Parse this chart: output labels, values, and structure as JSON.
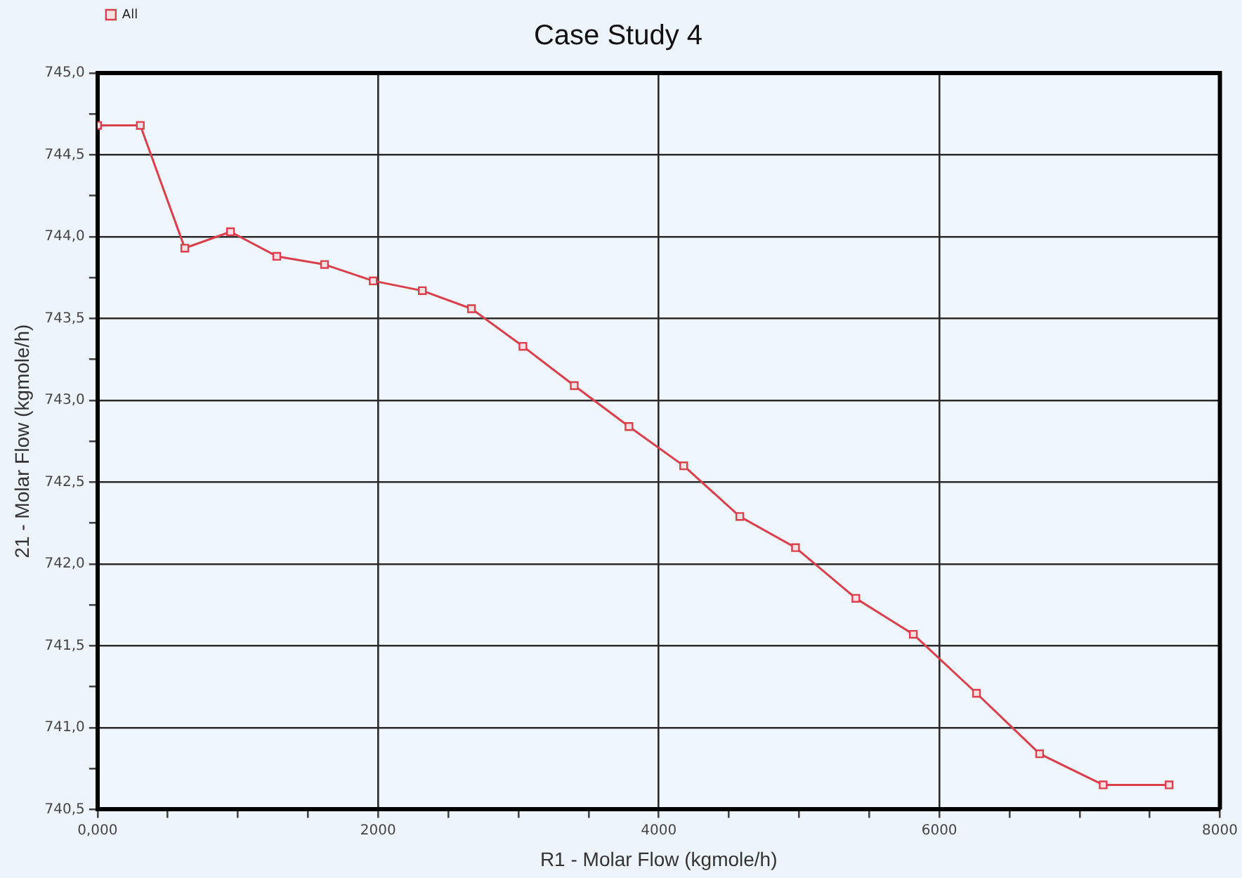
{
  "chart_data": {
    "type": "line",
    "title": "Case Study 4",
    "xlabel": "R1 - Molar Flow (kgmole/h)",
    "ylabel": "21 - Molar Flow (kgmole/h)",
    "x": [
      0,
      305,
      622,
      948,
      1278,
      1618,
      1965,
      2315,
      2665,
      3032,
      3398,
      3788,
      4178,
      4578,
      4975,
      5405,
      5815,
      6265,
      6715,
      7168,
      7638
    ],
    "series": [
      {
        "name": "All",
        "color": "#d9404c",
        "values": [
          744.68,
          744.68,
          743.93,
          744.03,
          743.88,
          743.83,
          743.73,
          743.67,
          743.56,
          743.33,
          743.09,
          742.84,
          742.6,
          742.29,
          742.1,
          741.79,
          741.57,
          741.21,
          740.84,
          740.65,
          740.65
        ]
      }
    ],
    "xlim": [
      0,
      8000
    ],
    "xticks": [
      {
        "value": 0,
        "label": "0,000"
      },
      {
        "value": 500,
        "label": null
      },
      {
        "value": 1000,
        "label": null
      },
      {
        "value": 1500,
        "label": null
      },
      2000,
      {
        "value": 2500,
        "label": null
      },
      {
        "value": 3000,
        "label": null
      },
      {
        "value": 3500,
        "label": null
      },
      4000,
      {
        "value": 4500,
        "label": null
      },
      {
        "value": 5000,
        "label": null
      },
      {
        "value": 5500,
        "label": null
      },
      6000,
      {
        "value": 6500,
        "label": null
      },
      {
        "value": 7000,
        "label": null
      },
      {
        "value": 7500,
        "label": null
      },
      8000
    ],
    "ylim": [
      740.5,
      745
    ],
    "yticks": [
      {
        "value": 740.5,
        "label": "740,5"
      },
      {
        "value": 740.75,
        "label": null
      },
      {
        "value": 741,
        "label": "741,0"
      },
      {
        "value": 741.25,
        "label": null
      },
      {
        "value": 741.5,
        "label": "741,5"
      },
      {
        "value": 741.75,
        "label": null
      },
      {
        "value": 742,
        "label": "742,0"
      },
      {
        "value": 742.25,
        "label": null
      },
      {
        "value": 742.5,
        "label": "742,5"
      },
      {
        "value": 742.75,
        "label": null
      },
      {
        "value": 743,
        "label": "743,0"
      },
      {
        "value": 743.25,
        "label": null
      },
      {
        "value": 743.5,
        "label": "743,5"
      },
      {
        "value": 743.75,
        "label": null
      },
      {
        "value": 744,
        "label": "744,0"
      },
      {
        "value": 744.25,
        "label": null
      },
      {
        "value": 744.5,
        "label": "744,5"
      },
      {
        "value": 744.75,
        "label": null
      },
      {
        "value": 745,
        "label": "745,0"
      }
    ],
    "grid": true,
    "legend": "top left",
    "marker": "square",
    "line_style": "solid"
  }
}
